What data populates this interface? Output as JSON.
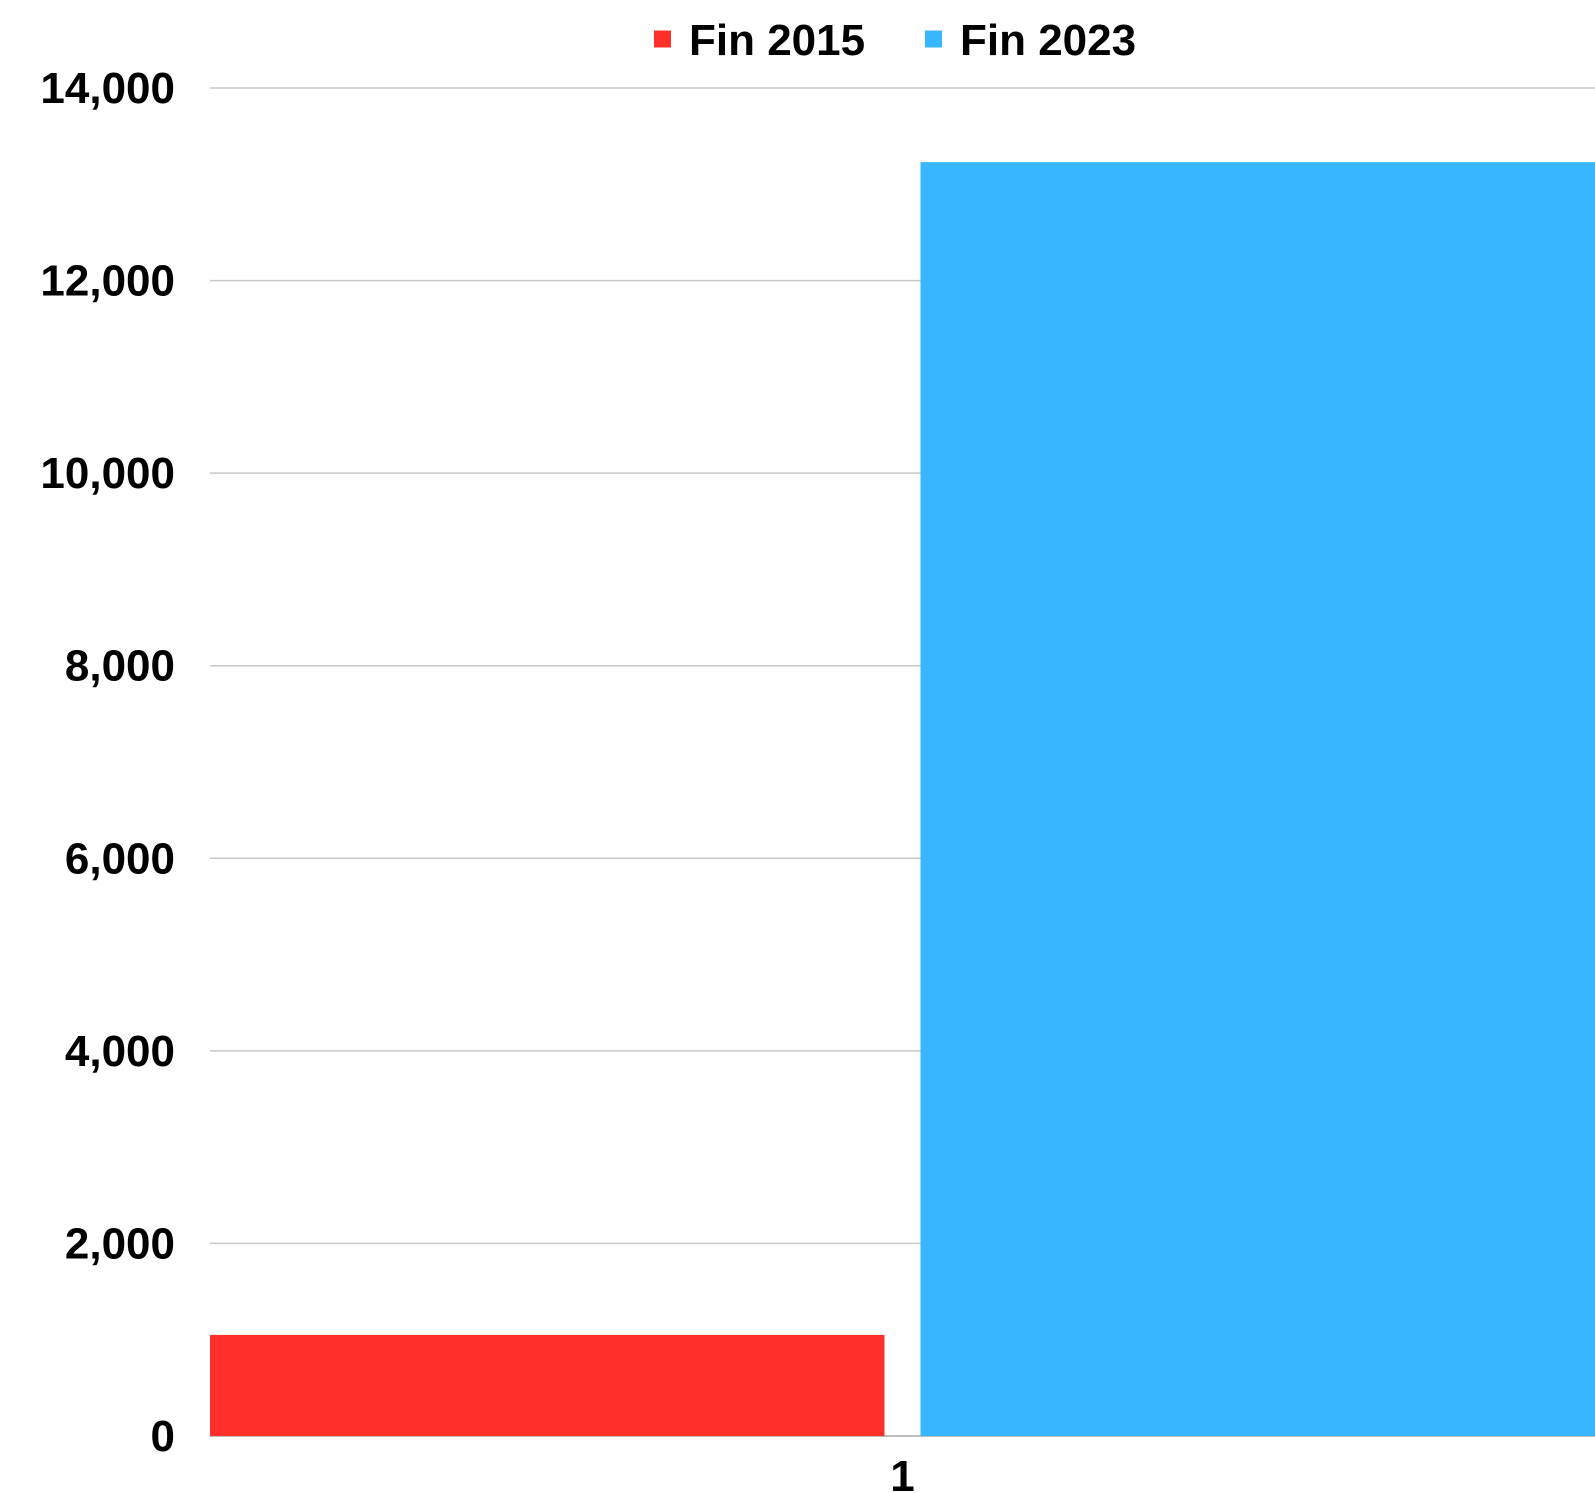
{
  "chart_data": {
    "type": "bar",
    "categories": [
      "1"
    ],
    "series": [
      {
        "name": "Fin 2015",
        "color": "#ff3029",
        "values": [
          1050
        ]
      },
      {
        "name": "Fin 2023",
        "color": "#38b6ff",
        "values": [
          13230
        ]
      }
    ],
    "ylim": [
      0,
      14000
    ],
    "yticks": [
      0,
      2000,
      4000,
      6000,
      8000,
      10000,
      12000,
      14000
    ],
    "ytick_labels": [
      "0",
      "2,000",
      "4,000",
      "6,000",
      "8,000",
      "10,000",
      "12,000",
      "14,000"
    ],
    "xlabel": "",
    "ylabel": "",
    "title": "",
    "grid": true,
    "legend_position": "top-center"
  }
}
